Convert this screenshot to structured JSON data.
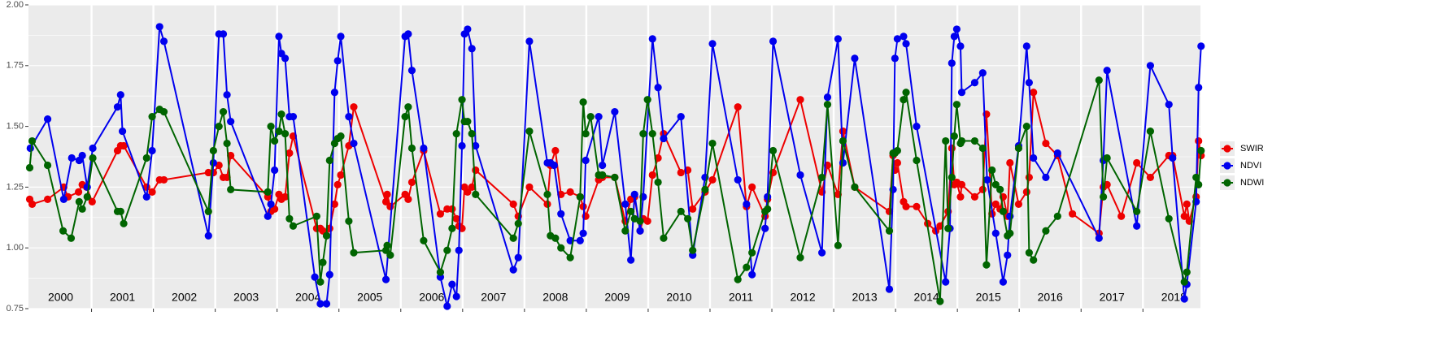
{
  "chart_data": {
    "type": "line",
    "ylim": [
      0.75,
      2.0
    ],
    "yticks": [
      0.75,
      {
        "value": 1,
        "label": "1.00"
      },
      1.25,
      {
        "value": 1.5,
        "label": "1.50"
      },
      1.75,
      {
        "value": 2,
        "label": "2.00"
      }
    ],
    "xlim": [
      1999.98,
      2018.93
    ],
    "year_boundaries": [
      2001,
      2002,
      2003,
      2004,
      2005,
      2006,
      2007,
      2008,
      2009,
      2010,
      2011,
      2012,
      2013,
      2014,
      2015,
      2016,
      2017,
      2018
    ],
    "grid": true,
    "legend": "right",
    "annotations": [
      {
        "text": "2000",
        "x": 2000.5
      },
      {
        "text": "2001",
        "x": 2001.5
      },
      {
        "text": "2002",
        "x": 2002.5
      },
      {
        "text": "2003",
        "x": 2003.5
      },
      {
        "text": "2004",
        "x": 2004.5
      },
      {
        "text": "2005",
        "x": 2005.5
      },
      {
        "text": "2006",
        "x": 2006.5
      },
      {
        "text": "2007",
        "x": 2007.5
      },
      {
        "text": "2008",
        "x": 2008.5
      },
      {
        "text": "2009",
        "x": 2009.5
      },
      {
        "text": "2010",
        "x": 2010.5
      },
      {
        "text": "2011",
        "x": 2011.5
      },
      {
        "text": "2012",
        "x": 2012.5
      },
      {
        "text": "2013",
        "x": 2013.5
      },
      {
        "text": "2014",
        "x": 2014.5
      },
      {
        "text": "2015",
        "x": 2015.5
      },
      {
        "text": "2016",
        "x": 2016.5
      },
      {
        "text": "2017",
        "x": 2017.5
      },
      {
        "text": "2018",
        "x": 2018.5
      }
    ],
    "series": [
      {
        "name": "SWIR",
        "color": "#ee0000",
        "x": [
          2000.0,
          2000.04,
          2000.29,
          2000.55,
          2000.62,
          2000.79,
          2000.85,
          2000.92,
          2001.01,
          2001.42,
          2001.47,
          2001.52,
          2001.89,
          2001.98,
          2002.1,
          2002.17,
          2002.89,
          2002.97,
          2003.06,
          2003.13,
          2003.19,
          2003.25,
          2003.85,
          2003.9,
          2003.96,
          2004.03,
          2004.07,
          2004.13,
          2004.2,
          2004.26,
          2004.64,
          2004.7,
          2004.74,
          2004.8,
          2004.85,
          2004.93,
          2004.98,
          2005.03,
          2005.16,
          2005.24,
          2005.76,
          2005.78,
          2005.83,
          2006.07,
          2006.12,
          2006.18,
          2006.37,
          2006.64,
          2006.75,
          2006.83,
          2006.9,
          2006.94,
          2006.99,
          2007.03,
          2007.08,
          2007.15,
          2007.21,
          2007.82,
          2007.9,
          2008.08,
          2008.37,
          2008.42,
          2008.5,
          2008.59,
          2008.74,
          2008.9,
          2008.95,
          2008.99,
          2009.2,
          2009.26,
          2009.46,
          2009.63,
          2009.72,
          2009.78,
          2009.87,
          2009.92,
          2009.99,
          2010.07,
          2010.16,
          2010.25,
          2010.53,
          2010.64,
          2010.72,
          2010.92,
          2011.04,
          2011.45,
          2011.59,
          2011.68,
          2011.89,
          2011.93,
          2012.02,
          2012.46,
          2012.81,
          2012.9,
          2013.07,
          2013.15,
          2013.34,
          2013.9,
          2013.96,
          2013.99,
          2014.03,
          2014.13,
          2014.17,
          2014.34,
          2014.52,
          2014.65,
          2014.72,
          2014.85,
          2014.91,
          2014.95,
          2014.99,
          2015.05,
          2015.07,
          2015.28,
          2015.41,
          2015.47,
          2015.56,
          2015.62,
          2015.69,
          2015.74,
          2015.81,
          2015.85,
          2015.99,
          2016.12,
          2016.16,
          2016.23,
          2016.43,
          2016.62,
          2016.86,
          2017.29,
          2017.36,
          2017.42,
          2017.65,
          2017.9,
          2018.12,
          2018.42,
          2018.48,
          2018.67,
          2018.71,
          2018.75,
          2018.86,
          2018.9,
          2018.94
        ],
        "values": [
          1.2,
          1.18,
          1.2,
          1.25,
          1.21,
          1.23,
          1.26,
          1.25,
          1.19,
          1.4,
          1.42,
          1.42,
          1.25,
          1.23,
          1.28,
          1.28,
          1.31,
          1.31,
          1.34,
          1.29,
          1.29,
          1.38,
          1.21,
          1.15,
          1.16,
          1.22,
          1.2,
          1.21,
          1.39,
          1.46,
          1.08,
          1.08,
          1.07,
          1.05,
          1.08,
          1.18,
          1.26,
          1.3,
          1.42,
          1.58,
          1.19,
          1.22,
          1.17,
          1.22,
          1.2,
          1.27,
          1.4,
          1.14,
          1.16,
          1.16,
          1.12,
          1.09,
          1.08,
          1.25,
          1.23,
          1.25,
          1.32,
          1.18,
          1.13,
          1.25,
          1.18,
          1.34,
          1.4,
          1.22,
          1.23,
          1.21,
          1.17,
          1.13,
          1.28,
          1.29,
          1.29,
          1.11,
          1.2,
          1.21,
          1.07,
          1.12,
          1.11,
          1.3,
          1.37,
          1.47,
          1.31,
          1.32,
          1.16,
          1.23,
          1.28,
          1.58,
          1.17,
          1.25,
          1.13,
          1.2,
          1.31,
          1.61,
          1.23,
          1.34,
          1.22,
          1.48,
          1.25,
          1.15,
          1.38,
          1.32,
          1.35,
          1.19,
          1.17,
          1.17,
          1.1,
          1.07,
          1.09,
          1.15,
          1.41,
          1.26,
          1.27,
          1.21,
          1.26,
          1.21,
          1.24,
          1.55,
          1.14,
          1.18,
          1.16,
          1.21,
          1.13,
          1.35,
          1.18,
          1.23,
          1.29,
          1.64,
          1.43,
          1.38,
          1.14,
          1.06,
          1.25,
          1.26,
          1.13,
          1.35,
          1.29,
          1.38,
          1.38,
          1.13,
          1.18,
          1.11,
          1.21,
          1.44,
          1.38
        ]
      },
      {
        "name": "NDVI",
        "color": "#0000ee",
        "x": [
          2000.01,
          2000.29,
          2000.55,
          2000.68,
          2000.8,
          2000.85,
          2000.93,
          2001.02,
          2001.42,
          2001.47,
          2001.5,
          2001.89,
          2001.98,
          2002.1,
          2002.17,
          2002.89,
          2002.97,
          2003.06,
          2003.13,
          2003.19,
          2003.25,
          2003.85,
          2003.9,
          2003.96,
          2004.03,
          2004.07,
          2004.13,
          2004.2,
          2004.26,
          2004.61,
          2004.7,
          2004.8,
          2004.85,
          2004.93,
          2004.98,
          2005.03,
          2005.16,
          2005.24,
          2005.76,
          2006.07,
          2006.12,
          2006.18,
          2006.37,
          2006.64,
          2006.75,
          2006.83,
          2006.9,
          2006.94,
          2006.99,
          2007.03,
          2007.08,
          2007.15,
          2007.21,
          2007.82,
          2007.9,
          2008.08,
          2008.37,
          2008.42,
          2008.48,
          2008.59,
          2008.74,
          2008.9,
          2008.95,
          2008.99,
          2009.2,
          2009.26,
          2009.46,
          2009.63,
          2009.72,
          2009.78,
          2009.87,
          2009.92,
          2010.07,
          2010.16,
          2010.25,
          2010.53,
          2010.72,
          2010.92,
          2011.04,
          2011.45,
          2011.59,
          2011.68,
          2011.89,
          2011.93,
          2012.02,
          2012.46,
          2012.81,
          2012.9,
          2013.07,
          2013.15,
          2013.34,
          2013.9,
          2013.96,
          2013.99,
          2014.03,
          2014.13,
          2014.17,
          2014.34,
          2014.81,
          2014.88,
          2014.91,
          2014.95,
          2014.99,
          2015.05,
          2015.07,
          2015.28,
          2015.41,
          2015.48,
          2015.62,
          2015.74,
          2015.81,
          2015.85,
          2015.99,
          2016.12,
          2016.16,
          2016.23,
          2016.43,
          2016.62,
          2017.29,
          2017.36,
          2017.42,
          2017.9,
          2018.12,
          2018.42,
          2018.48,
          2018.67,
          2018.71,
          2018.86,
          2018.9,
          2018.94
        ],
        "values": [
          1.41,
          1.53,
          1.2,
          1.37,
          1.36,
          1.38,
          1.25,
          1.41,
          1.58,
          1.63,
          1.48,
          1.21,
          1.4,
          1.91,
          1.85,
          1.05,
          1.35,
          1.88,
          1.88,
          1.63,
          1.52,
          1.13,
          1.18,
          1.32,
          1.87,
          1.8,
          1.78,
          1.54,
          1.54,
          0.88,
          0.77,
          0.77,
          0.89,
          1.64,
          1.77,
          1.87,
          1.54,
          1.43,
          0.87,
          1.87,
          1.88,
          1.73,
          1.41,
          0.88,
          0.76,
          0.85,
          0.8,
          0.99,
          1.42,
          1.88,
          1.9,
          1.82,
          1.42,
          0.91,
          0.96,
          1.85,
          1.35,
          1.35,
          1.34,
          1.14,
          1.03,
          1.03,
          1.06,
          1.36,
          1.54,
          1.34,
          1.56,
          1.18,
          0.95,
          1.22,
          1.07,
          1.21,
          1.86,
          1.66,
          1.45,
          1.54,
          0.97,
          1.29,
          1.84,
          1.28,
          1.18,
          0.89,
          1.08,
          1.21,
          1.85,
          1.3,
          0.98,
          1.62,
          1.86,
          1.35,
          1.78,
          0.83,
          1.24,
          1.78,
          1.86,
          1.87,
          1.84,
          1.5,
          0.86,
          1.08,
          1.76,
          1.87,
          1.9,
          1.83,
          1.64,
          1.68,
          1.72,
          1.28,
          1.06,
          0.86,
          0.97,
          1.13,
          1.42,
          1.83,
          1.68,
          1.37,
          1.29,
          1.39,
          1.04,
          1.36,
          1.73,
          1.09,
          1.75,
          1.59,
          1.37,
          0.79,
          0.85,
          1.19,
          1.66,
          1.83
        ]
      },
      {
        "name": "NDWI",
        "color": "#006400",
        "x": [
          2000.0,
          2000.04,
          2000.29,
          2000.54,
          2000.67,
          2000.8,
          2000.85,
          2000.93,
          2001.02,
          2001.42,
          2001.47,
          2001.52,
          2001.89,
          2001.98,
          2002.1,
          2002.17,
          2002.89,
          2002.97,
          2003.06,
          2003.13,
          2003.19,
          2003.25,
          2003.85,
          2003.9,
          2003.96,
          2004.03,
          2004.07,
          2004.13,
          2004.2,
          2004.26,
          2004.64,
          2004.7,
          2004.74,
          2004.8,
          2004.85,
          2004.93,
          2004.98,
          2005.03,
          2005.16,
          2005.24,
          2005.76,
          2005.78,
          2005.83,
          2006.07,
          2006.12,
          2006.18,
          2006.37,
          2006.64,
          2006.75,
          2006.83,
          2006.9,
          2006.99,
          2007.03,
          2007.08,
          2007.15,
          2007.21,
          2007.82,
          2007.9,
          2008.08,
          2008.37,
          2008.42,
          2008.5,
          2008.59,
          2008.74,
          2008.9,
          2008.95,
          2008.99,
          2009.07,
          2009.2,
          2009.26,
          2009.46,
          2009.63,
          2009.72,
          2009.78,
          2009.87,
          2009.92,
          2009.99,
          2010.07,
          2010.16,
          2010.25,
          2010.53,
          2010.64,
          2010.72,
          2010.92,
          2011.04,
          2011.45,
          2011.59,
          2011.68,
          2011.89,
          2011.93,
          2012.02,
          2012.46,
          2012.81,
          2012.9,
          2013.07,
          2013.15,
          2013.34,
          2013.9,
          2013.96,
          2013.99,
          2014.03,
          2014.13,
          2014.17,
          2014.34,
          2014.72,
          2014.81,
          2014.85,
          2014.91,
          2014.95,
          2014.99,
          2015.05,
          2015.07,
          2015.28,
          2015.41,
          2015.47,
          2015.56,
          2015.62,
          2015.69,
          2015.74,
          2015.81,
          2015.85,
          2015.99,
          2016.12,
          2016.16,
          2016.23,
          2016.43,
          2016.62,
          2017.29,
          2017.36,
          2017.42,
          2017.9,
          2018.12,
          2018.42,
          2018.67,
          2018.71,
          2018.86,
          2018.9,
          2018.94
        ],
        "values": [
          1.33,
          1.44,
          1.34,
          1.07,
          1.04,
          1.19,
          1.16,
          1.21,
          1.37,
          1.15,
          1.15,
          1.1,
          1.37,
          1.54,
          1.57,
          1.56,
          1.15,
          1.4,
          1.5,
          1.56,
          1.43,
          1.24,
          1.23,
          1.5,
          1.44,
          1.48,
          1.55,
          1.47,
          1.12,
          1.09,
          1.13,
          0.86,
          0.94,
          1.05,
          1.36,
          1.43,
          1.45,
          1.46,
          1.11,
          0.98,
          0.99,
          1.01,
          0.97,
          1.54,
          1.58,
          1.41,
          1.03,
          0.9,
          0.99,
          1.08,
          1.47,
          1.61,
          1.52,
          1.52,
          1.47,
          1.22,
          1.04,
          1.1,
          1.48,
          1.22,
          1.05,
          1.04,
          1.0,
          0.96,
          1.21,
          1.6,
          1.47,
          1.54,
          1.3,
          1.3,
          1.29,
          1.07,
          1.15,
          1.12,
          1.11,
          1.47,
          1.61,
          1.47,
          1.27,
          1.04,
          1.15,
          1.12,
          0.99,
          1.24,
          1.43,
          0.87,
          0.92,
          0.98,
          1.15,
          1.16,
          1.4,
          0.96,
          1.29,
          1.59,
          1.01,
          1.44,
          1.25,
          1.07,
          1.39,
          1.39,
          1.4,
          1.61,
          1.64,
          1.36,
          0.78,
          1.44,
          1.08,
          1.29,
          1.46,
          1.59,
          1.43,
          1.44,
          1.44,
          1.41,
          0.93,
          1.32,
          1.26,
          1.24,
          1.15,
          1.05,
          1.06,
          1.41,
          1.5,
          0.98,
          0.95,
          1.07,
          1.13,
          1.69,
          1.21,
          1.37,
          1.15,
          1.48,
          1.12,
          0.86,
          0.9,
          1.29,
          1.26,
          1.4
        ]
      }
    ]
  }
}
